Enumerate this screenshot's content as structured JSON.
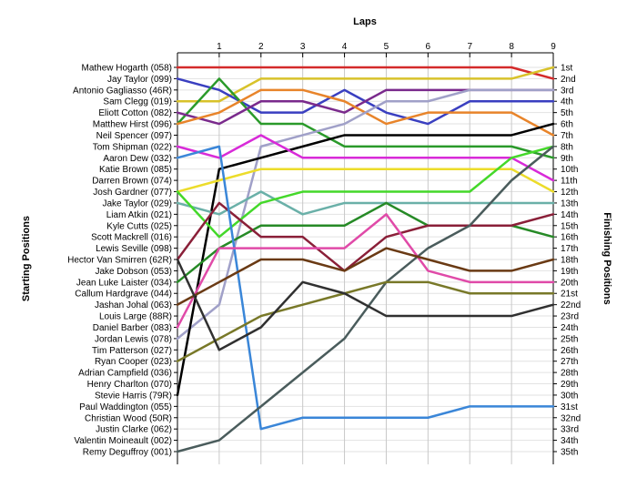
{
  "chart_data": {
    "type": "line",
    "title": "Laps",
    "ylabel_left": "Starting Positions",
    "ylabel_right": "Finishing Positions",
    "x_ticks": [
      1,
      2,
      3,
      4,
      5,
      6,
      7,
      8,
      9
    ],
    "xlim": [
      0,
      9
    ],
    "ylim": [
      1,
      35
    ],
    "grid": true,
    "start_labels": [
      "Mathew Hogarth (058)",
      "Jay Taylor (099)",
      "Antonio Gagliasso (46R)",
      "Sam Clegg (019)",
      "Eliott Cotton (082)",
      "Matthew Hirst (096)",
      "Neil Spencer (097)",
      "Tom Shipman (022)",
      "Aaron Dew (032)",
      "Katie Brown (085)",
      "Darren Brown (074)",
      "Josh Gardner (077)",
      "Jake Taylor (029)",
      "Liam Atkin (021)",
      "Kyle Cutts (025)",
      "Scott Mackrell (016)",
      "Lewis Seville (098)",
      "Hector Van Smirren (62R)",
      "Jake Dobson (053)",
      "Jean Luke Laister (034)",
      "Callum Hardgrave (044)",
      "Jashan Johal (063)",
      "Louis Large (88R)",
      "Daniel Barber (083)",
      "Jordan Lewis (078)",
      "Tim Patterson (027)",
      "Ryan Cooper (023)",
      "Adrian Campfield (036)",
      "Henry Charlton (070)",
      "Stevie Harris (79R)",
      "Paul Waddington (055)",
      "Christian Wood (50R)",
      "Justin Clarke (062)",
      "Valentin Moineault (002)",
      "Remy Deguffroy (001)"
    ],
    "finish_labels": [
      "1st",
      "2nd",
      "3rd",
      "4th",
      "5th",
      "6th",
      "7th",
      "8th",
      "9th",
      "10th",
      "11th",
      "12th",
      "13th",
      "14th",
      "15th",
      "16th",
      "17th",
      "18th",
      "19th",
      "20th",
      "21st",
      "22nd",
      "23rd",
      "24th",
      "25th",
      "26th",
      "27th",
      "28th",
      "29th",
      "30th",
      "31st",
      "32nd",
      "33rd",
      "34th",
      "35th"
    ],
    "series": [
      {
        "color": "#d42a2a",
        "positions": [
          1,
          1,
          1,
          1,
          1,
          1,
          1,
          1,
          1,
          2
        ]
      },
      {
        "color": "#d8c22a",
        "positions": [
          4,
          4,
          2,
          2,
          2,
          2,
          2,
          2,
          2,
          1
        ]
      },
      {
        "color": "#3a3fc0",
        "positions": [
          2,
          3,
          5,
          5,
          3,
          5,
          6,
          4,
          4,
          4
        ]
      },
      {
        "color": "#2a9a2a",
        "positions": [
          6,
          2,
          6,
          6,
          8,
          8,
          8,
          8,
          8,
          9
        ]
      },
      {
        "color": "#7a2a8c",
        "positions": [
          5,
          6,
          4,
          4,
          5,
          3,
          3,
          3,
          3,
          3
        ]
      },
      {
        "color": "#e8842a",
        "positions": [
          6,
          5,
          3,
          3,
          4,
          6,
          5,
          5,
          5,
          7
        ]
      },
      {
        "color": "#a0a0c8",
        "positions": [
          25,
          22,
          8,
          7,
          6,
          4,
          4,
          3,
          3,
          3
        ]
      },
      {
        "color": "#000000",
        "positions": [
          30,
          10,
          9,
          8,
          7,
          7,
          7,
          7,
          7,
          6
        ]
      },
      {
        "color": "#d82ad8",
        "positions": [
          8,
          9,
          7,
          9,
          9,
          9,
          9,
          9,
          9,
          11
        ]
      },
      {
        "color": "#ecdc2a",
        "positions": [
          12,
          11,
          10,
          10,
          10,
          10,
          10,
          10,
          10,
          12
        ]
      },
      {
        "color": "#6ab0a8",
        "positions": [
          13,
          14,
          12,
          14,
          13,
          13,
          13,
          13,
          13,
          13
        ]
      },
      {
        "color": "#44d82a",
        "positions": [
          12,
          16,
          13,
          12,
          12,
          12,
          12,
          12,
          9,
          8
        ]
      },
      {
        "color": "#268a26",
        "positions": [
          20,
          17,
          15,
          15,
          15,
          13,
          15,
          15,
          15,
          16
        ]
      },
      {
        "color": "#8a1f38",
        "positions": [
          18,
          13,
          16,
          16,
          19,
          16,
          15,
          15,
          15,
          14
        ]
      },
      {
        "color": "#3a86d8",
        "positions": [
          9,
          8,
          33,
          32,
          32,
          32,
          32,
          31,
          31,
          31
        ]
      },
      {
        "color": "#4a5c5c",
        "positions": [
          35,
          34,
          31,
          28,
          25,
          20,
          17,
          15,
          11,
          8
        ]
      },
      {
        "color": "#e04aa8",
        "positions": [
          24,
          17,
          17,
          17,
          17,
          14,
          19,
          20,
          20,
          20
        ]
      },
      {
        "color": "#6a3a14",
        "positions": [
          22,
          20,
          18,
          18,
          19,
          17,
          18,
          19,
          19,
          18
        ]
      },
      {
        "color": "#787828",
        "positions": [
          27,
          25,
          23,
          22,
          21,
          20,
          20,
          21,
          21,
          21
        ]
      },
      {
        "color": "#303030",
        "positions": [
          18,
          26,
          24,
          20,
          21,
          23,
          23,
          23,
          23,
          22
        ]
      }
    ]
  }
}
